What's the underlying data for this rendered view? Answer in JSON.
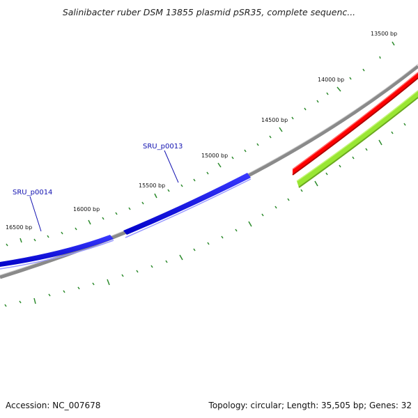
{
  "title": "Salinibacter ruber DSM 13855 plasmid pSR35, complete sequenc...",
  "footer": {
    "accession": "Accession: NC_007678",
    "summary": "Topology: circular; Length: 35,505 bp; Genes: 32"
  },
  "colors": {
    "backbone": "#8a8a8a",
    "forward_gene": "#ff0000",
    "forward_gene_2": "#99e633",
    "reverse_gene": "#0a0ae6",
    "tick": "#2a8a2a",
    "gene_label": "#1010b0"
  },
  "bp_labels": [
    "13500 bp",
    "14000 bp",
    "14500 bp",
    "15000 bp",
    "15500 bp",
    "16000 bp",
    "16500 bp"
  ],
  "gene_labels": [
    "SRU_p0013",
    "SRU_p0014"
  ]
}
